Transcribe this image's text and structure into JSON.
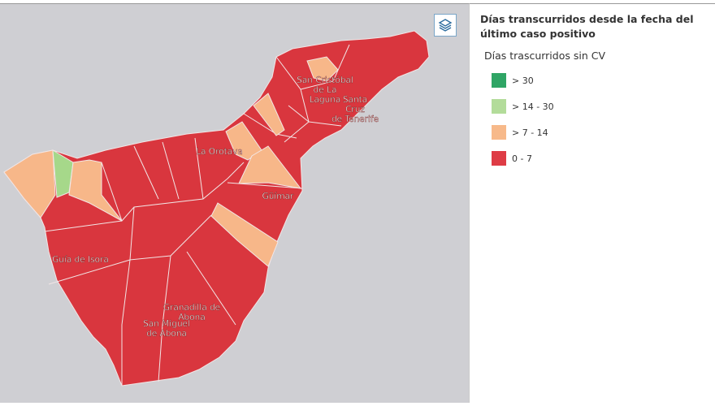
{
  "legend": {
    "title": "Días transcurridos desde la fecha del último caso positivo",
    "subtitle": "Días trascurridos sin CV",
    "items": [
      {
        "label": "> 30",
        "color": "#2fa565"
      },
      {
        "label": "> 14 - 30",
        "color": "#b3dc9a"
      },
      {
        "label": "> 7 - 14",
        "color": "#f7b98a"
      },
      {
        "label": "0 - 7",
        "color": "#de3c45"
      }
    ]
  },
  "places": [
    {
      "lines": [
        "San Cristóbal",
        "de La",
        "Laguna"
      ]
    },
    {
      "lines": [
        "Santa",
        "Cruz",
        "de Tenerife"
      ]
    },
    {
      "lines": [
        "La Orotava"
      ]
    },
    {
      "lines": [
        "Güímar"
      ]
    },
    {
      "lines": [
        "Guía de Isora"
      ]
    },
    {
      "lines": [
        "Granadilla de",
        "Abona"
      ]
    },
    {
      "lines": [
        "San Miguel",
        "de Abona"
      ]
    }
  ]
}
